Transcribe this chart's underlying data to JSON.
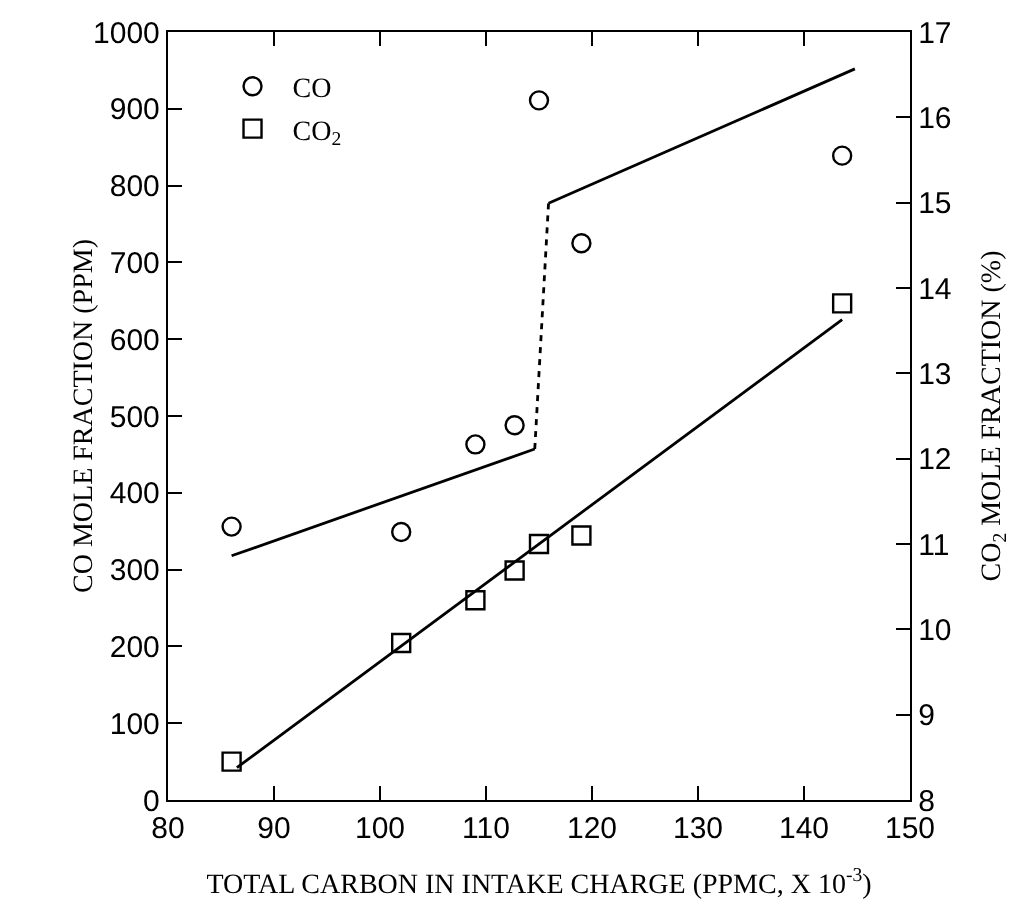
{
  "chart_data": {
    "type": "scatter",
    "xlabel": "TOTAL CARBON IN INTAKE CHARGE (PPMC, X 10$^{-3}$)",
    "ylabel": "CO MOLE FRACTION (PPM)",
    "y2label": "CO$_{2}$ MOLE FRACTION (%)",
    "xlim": [
      80,
      150
    ],
    "xticks": [
      80,
      90,
      100,
      110,
      120,
      130,
      140,
      150
    ],
    "ylim": [
      0,
      1000
    ],
    "yticks": [
      0,
      100,
      200,
      300,
      400,
      500,
      600,
      700,
      800,
      900,
      1000
    ],
    "y2lim": [
      8,
      17
    ],
    "y2ticks": [
      8,
      9,
      10,
      11,
      12,
      13,
      14,
      15,
      16,
      17
    ],
    "grid": false,
    "legend": "top left",
    "series": [
      {
        "name": "CO",
        "marker": "circle",
        "color": "#000000",
        "x": [
          86,
          102,
          109,
          112.7,
          115,
          119,
          143.6
        ],
        "values": [
          356,
          349,
          463,
          488,
          911,
          725,
          839
        ]
      },
      {
        "name": "CO$_{2}$",
        "marker": "square",
        "axis": "y2",
        "color": "#000000",
        "x": [
          86,
          102,
          109,
          112.7,
          115,
          119,
          143.6
        ],
        "values": [
          8.45,
          9.84,
          10.34,
          10.69,
          11.0,
          11.1,
          13.82
        ]
      },
      {
        "type": "line",
        "marker": "none",
        "line_style": "solid",
        "color": "#000000",
        "x": [
          86,
          114.6
        ],
        "values": [
          318,
          457
        ]
      },
      {
        "type": "line",
        "marker": "none",
        "line_style": "dotted",
        "color": "#000000",
        "x": [
          114.6,
          115.9
        ],
        "values": [
          457,
          777
        ]
      },
      {
        "type": "line",
        "marker": "none",
        "line_style": "solid",
        "color": "#000000",
        "x": [
          115.9,
          144.8
        ],
        "values": [
          777,
          952
        ]
      },
      {
        "type": "line",
        "marker": "none",
        "line_style": "solid",
        "axis": "y2",
        "color": "#000000",
        "x": [
          86.5,
          143.6
        ],
        "values": [
          8.38,
          13.63
        ]
      }
    ]
  }
}
